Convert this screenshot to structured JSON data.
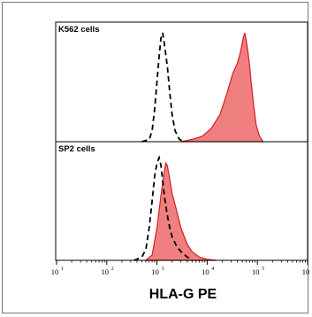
{
  "chart_data": {
    "type": "area",
    "xscale": "log",
    "xlim": [
      10,
      1000000
    ],
    "xlabel": "HLA-G PE",
    "xtick_labels": [
      {
        "base": "10",
        "exp": "1"
      },
      {
        "base": "10",
        "exp": "2"
      },
      {
        "base": "10",
        "exp": "3"
      },
      {
        "base": "10",
        "exp": "4"
      },
      {
        "base": "10",
        "exp": "5"
      },
      {
        "base": "10",
        "exp": "6"
      }
    ],
    "grid": false,
    "panels": [
      {
        "label": "K562 cells",
        "series": [
          {
            "style": "dashed-outline",
            "color": "#000000",
            "points": [
              [
                500,
                0
              ],
              [
                700,
                0.02
              ],
              [
                800,
                0.1
              ],
              [
                900,
                0.3
              ],
              [
                1000,
                0.55
              ],
              [
                1100,
                0.78
              ],
              [
                1200,
                0.95
              ],
              [
                1300,
                1.0
              ],
              [
                1400,
                0.9
              ],
              [
                1600,
                0.7
              ],
              [
                1800,
                0.45
              ],
              [
                2000,
                0.25
              ],
              [
                2300,
                0.1
              ],
              [
                2800,
                0.02
              ],
              [
                3500,
                0
              ]
            ]
          },
          {
            "style": "filled",
            "color": "#f07f7f",
            "edge_color": "#d0202a",
            "points": [
              [
                3000,
                0
              ],
              [
                5000,
                0.02
              ],
              [
                8000,
                0.05
              ],
              [
                12000,
                0.12
              ],
              [
                18000,
                0.25
              ],
              [
                25000,
                0.45
              ],
              [
                32000,
                0.62
              ],
              [
                40000,
                0.72
              ],
              [
                46000,
                0.82
              ],
              [
                52000,
                0.95
              ],
              [
                56000,
                1.0
              ],
              [
                60000,
                0.93
              ],
              [
                65000,
                0.82
              ],
              [
                70000,
                0.7
              ],
              [
                75000,
                0.55
              ],
              [
                85000,
                0.32
              ],
              [
                95000,
                0.15
              ],
              [
                110000,
                0.05
              ],
              [
                130000,
                0
              ]
            ]
          }
        ]
      },
      {
        "label": "SP2 cells",
        "series": [
          {
            "style": "dashed-outline",
            "color": "#000000",
            "points": [
              [
                350,
                0
              ],
              [
                500,
                0.03
              ],
              [
                600,
                0.1
              ],
              [
                700,
                0.3
              ],
              [
                800,
                0.55
              ],
              [
                900,
                0.78
              ],
              [
                1000,
                0.9
              ],
              [
                1100,
                0.95
              ],
              [
                1200,
                0.88
              ],
              [
                1400,
                0.6
              ],
              [
                1600,
                0.42
              ],
              [
                1800,
                0.3
              ],
              [
                2000,
                0.22
              ],
              [
                2400,
                0.14
              ],
              [
                3000,
                0.08
              ],
              [
                4000,
                0.03
              ],
              [
                5000,
                0
              ]
            ]
          },
          {
            "style": "filled",
            "color": "#f07f7f",
            "edge_color": "#d0202a",
            "points": [
              [
                600,
                0
              ],
              [
                800,
                0.05
              ],
              [
                1000,
                0.3
              ],
              [
                1200,
                0.6
              ],
              [
                1400,
                0.82
              ],
              [
                1500,
                0.9
              ],
              [
                1600,
                0.88
              ],
              [
                1800,
                0.75
              ],
              [
                2000,
                0.62
              ],
              [
                2500,
                0.45
              ],
              [
                3000,
                0.3
              ],
              [
                4000,
                0.15
              ],
              [
                5000,
                0.08
              ],
              [
                7000,
                0.03
              ],
              [
                10000,
                0.01
              ],
              [
                15000,
                0
              ]
            ]
          }
        ]
      }
    ]
  }
}
